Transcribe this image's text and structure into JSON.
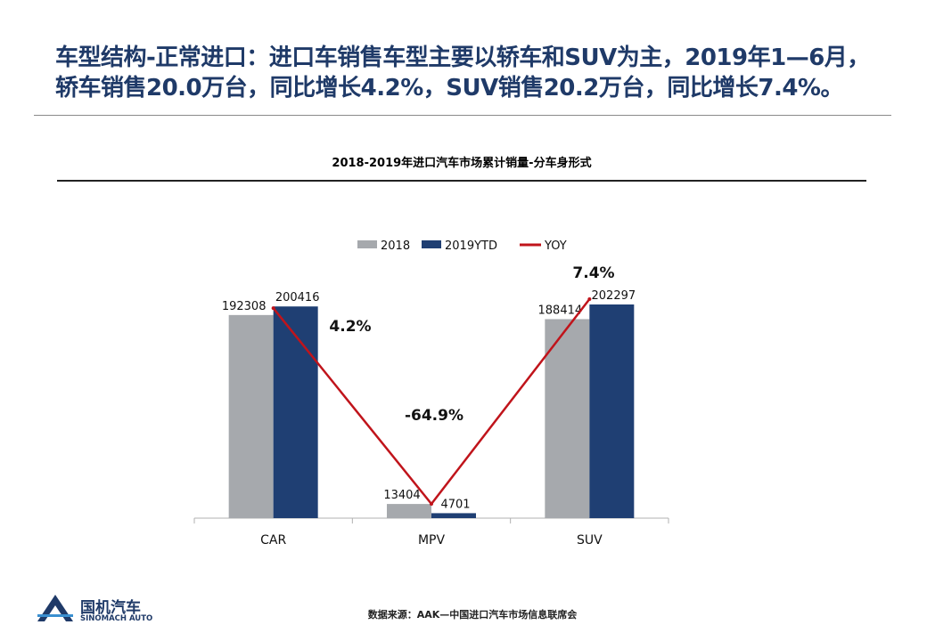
{
  "headline": {
    "line1": "车型结构-正常进口：进口车销售车型主要以轿车和SUV为主，2019年1—6月，",
    "line2": "轿车销售20.0万台，同比增长4.2%，SUV销售20.2万台，同比增长7.4%。"
  },
  "chart_data": {
    "type": "bar",
    "title": "2018-2019年进口汽车市场累计销量-分车身形式",
    "categories": [
      "CAR",
      "MPV",
      "SUV"
    ],
    "series": [
      {
        "name": "2018",
        "values": [
          192308,
          13404,
          188414
        ],
        "color": "#a6a9ad"
      },
      {
        "name": "2019YTD",
        "values": [
          200416,
          4701,
          202297
        ],
        "color": "#1f3f73"
      }
    ],
    "line_series": {
      "name": "YOY",
      "values": [
        4.2,
        -64.9,
        7.4
      ],
      "labels": [
        "4.2%",
        "-64.9%",
        "7.4%"
      ],
      "color": "#c0141b"
    },
    "ylim": [
      0,
      230000
    ],
    "yoy_range": [
      -70,
      12
    ],
    "legend_position": "top-center",
    "grid": false
  },
  "source": "数据来源：AAK—中国进口汽车市场信息联席会",
  "logo": {
    "name_cn": "国机汽车",
    "name_en": "SINOMACH AUTO",
    "color": "#1f3a68"
  }
}
